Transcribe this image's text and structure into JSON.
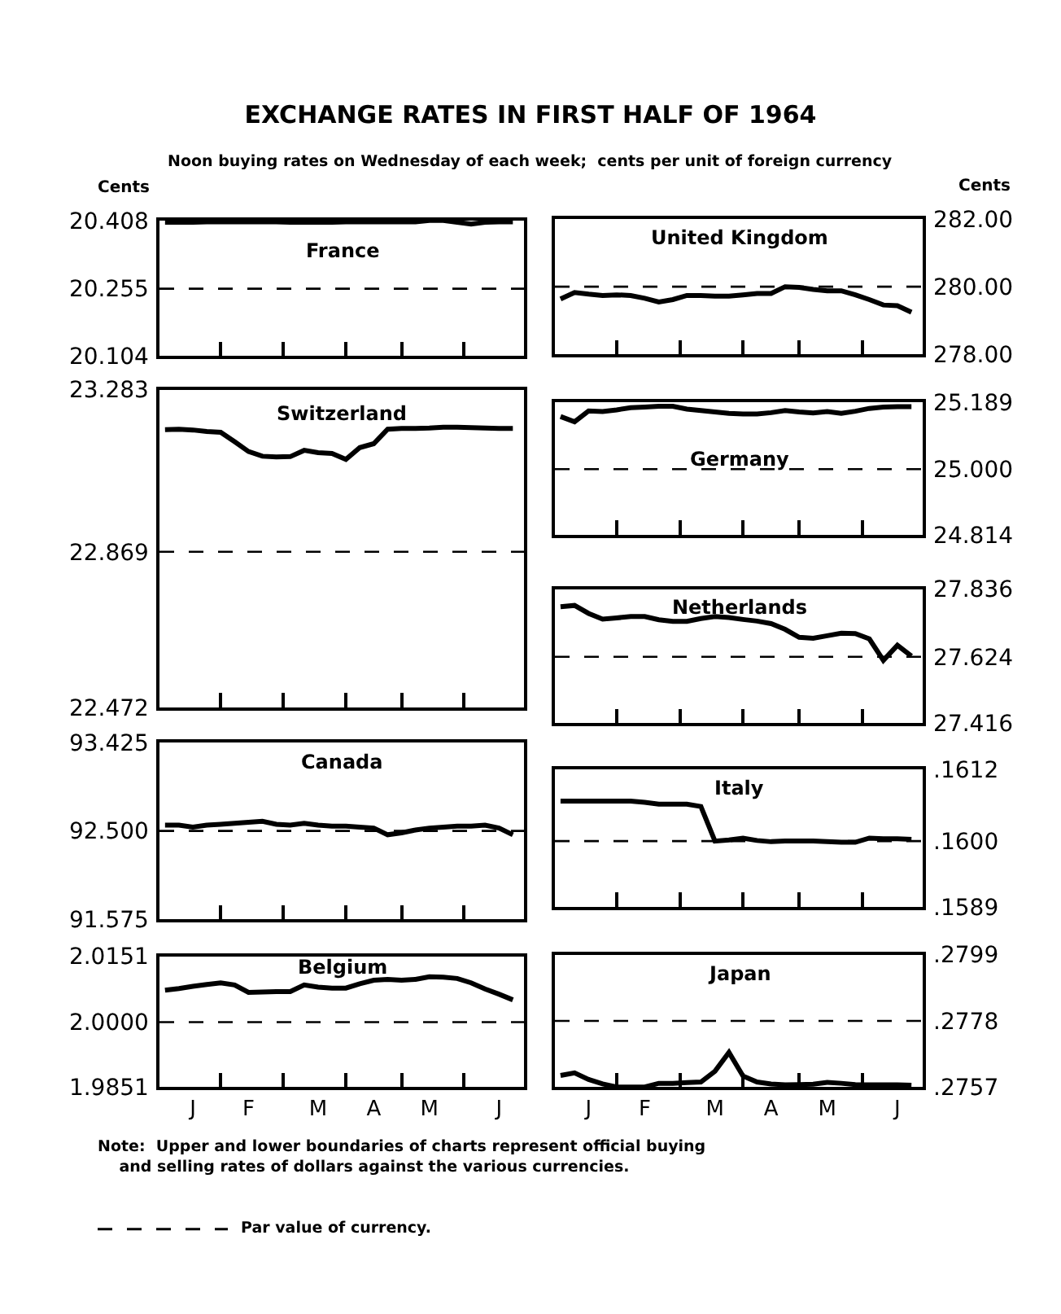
{
  "chart_data": [
    {
      "type": "other",
      "title": "EXCHANGE RATES IN FIRST HALF OF 1964",
      "subtitle": "Noon buying rates on Wednesday of each week;  cents per unit of foreign currency",
      "annotations": [
        "Note:  Upper and lower boundaries of charts represent official buying\n    and selling rates of dollars against the various currencies.",
        "Par value of currency."
      ]
    },
    {
      "type": "line",
      "title": "France",
      "ylabel": "Cents",
      "categories": [
        null,
        null,
        null,
        null,
        null,
        null,
        null,
        null,
        null,
        null,
        null,
        null,
        null,
        null,
        null,
        null,
        null,
        null,
        null,
        null,
        null,
        null,
        null,
        null,
        null,
        null
      ],
      "tick_labels": "y",
      "ylim": [
        20.104,
        20.408
      ],
      "yticks": [
        20.104,
        20.255,
        20.408
      ],
      "ref_lines": [
        {
          "axis": "y",
          "value": 20.255,
          "line_style": "dashed",
          "color": "#000000"
        }
      ],
      "series": [
        {
          "color": "#000000",
          "values": [
            20.404,
            20.404,
            20.404,
            20.405,
            20.405,
            20.405,
            20.405,
            20.405,
            20.405,
            20.404,
            20.404,
            20.404,
            20.404,
            20.405,
            20.405,
            20.405,
            20.405,
            20.405,
            20.405,
            20.408,
            20.408,
            20.404,
            20.4,
            20.404,
            20.405,
            20.405
          ]
        }
      ]
    },
    {
      "type": "line",
      "title": "United Kingdom",
      "ylabel": "Cents",
      "categories": [
        null,
        null,
        null,
        null,
        null,
        null,
        null,
        null,
        null,
        null,
        null,
        null,
        null,
        null,
        null,
        null,
        null,
        null,
        null,
        null,
        null,
        null,
        null,
        null,
        null,
        null
      ],
      "tick_labels": "y",
      "ylim": [
        278,
        282
      ],
      "yticks": [
        {
          "value": 278,
          "label": "278.00"
        },
        {
          "value": 280,
          "label": "280.00"
        },
        {
          "value": 282,
          "label": "282.00"
        }
      ],
      "ref_lines": [
        {
          "axis": "y",
          "value": 280,
          "line_style": "dashed",
          "color": "#000000"
        }
      ],
      "series": [
        {
          "color": "#000000",
          "values": [
            279.64,
            279.83,
            279.78,
            279.74,
            279.76,
            279.74,
            279.66,
            279.55,
            279.62,
            279.74,
            279.74,
            279.72,
            279.72,
            279.76,
            279.8,
            279.8,
            280.0,
            279.98,
            279.92,
            279.88,
            279.88,
            279.76,
            279.62,
            279.46,
            279.44,
            279.25
          ]
        }
      ]
    },
    {
      "type": "line",
      "title": "Switzerland",
      "categories": [
        null,
        null,
        null,
        null,
        null,
        null,
        null,
        null,
        null,
        null,
        null,
        null,
        null,
        null,
        null,
        null,
        null,
        null,
        null,
        null,
        null,
        null,
        null,
        null,
        null,
        null
      ],
      "tick_labels": "y",
      "ylim": [
        22.472,
        23.283
      ],
      "yticks": [
        22.472,
        22.869,
        23.283
      ],
      "ref_lines": [
        {
          "axis": "y",
          "value": 22.869,
          "line_style": "dashed",
          "color": "#000000"
        }
      ],
      "series": [
        {
          "color": "#000000",
          "values": [
            23.181,
            23.182,
            23.18,
            23.176,
            23.174,
            23.15,
            23.125,
            23.113,
            23.111,
            23.112,
            23.128,
            23.122,
            23.12,
            23.105,
            23.135,
            23.145,
            23.182,
            23.184,
            23.184,
            23.185,
            23.187,
            23.187,
            23.186,
            23.185,
            23.184,
            23.184
          ]
        }
      ]
    },
    {
      "type": "line",
      "title": "Germany",
      "categories": [
        null,
        null,
        null,
        null,
        null,
        null,
        null,
        null,
        null,
        null,
        null,
        null,
        null,
        null,
        null,
        null,
        null,
        null,
        null,
        null,
        null,
        null,
        null,
        null,
        null,
        null
      ],
      "tick_labels": "y",
      "ylim": [
        24.814,
        25.189
      ],
      "yticks": [
        24.814,
        {
          "value": 25.0,
          "label": "25.000"
        },
        25.189
      ],
      "ref_lines": [
        {
          "axis": "y",
          "value": 25.0,
          "line_style": "dashed",
          "color": "#000000"
        }
      ],
      "series": [
        {
          "color": "#000000",
          "values": [
            25.149,
            25.134,
            25.165,
            25.163,
            25.168,
            25.174,
            25.176,
            25.178,
            25.178,
            25.17,
            25.166,
            25.162,
            25.158,
            25.156,
            25.156,
            25.16,
            25.166,
            25.162,
            25.159,
            25.163,
            25.158,
            25.164,
            25.172,
            25.176,
            25.177,
            25.177
          ]
        }
      ]
    },
    {
      "type": "line",
      "title": "Netherlands",
      "categories": [
        null,
        null,
        null,
        null,
        null,
        null,
        null,
        null,
        null,
        null,
        null,
        null,
        null,
        null,
        null,
        null,
        null,
        null,
        null,
        null,
        null,
        null,
        null,
        null,
        null,
        null
      ],
      "tick_labels": "y",
      "ylim": [
        27.416,
        27.836
      ],
      "yticks": [
        27.416,
        27.624,
        27.836
      ],
      "ref_lines": [
        {
          "axis": "y",
          "value": 27.624,
          "line_style": "dashed",
          "color": "#000000"
        }
      ],
      "series": [
        {
          "color": "#000000",
          "values": [
            27.781,
            27.785,
            27.76,
            27.742,
            27.746,
            27.75,
            27.75,
            27.74,
            27.735,
            27.735,
            27.744,
            27.75,
            27.747,
            27.741,
            27.736,
            27.728,
            27.71,
            27.685,
            27.682,
            27.69,
            27.698,
            27.697,
            27.68,
            27.613,
            27.66,
            27.626
          ]
        }
      ]
    },
    {
      "type": "line",
      "title": "Canada",
      "categories": [
        null,
        null,
        null,
        null,
        null,
        null,
        null,
        null,
        null,
        null,
        null,
        null,
        null,
        null,
        null,
        null,
        null,
        null,
        null,
        null,
        null,
        null,
        null,
        null,
        null,
        null
      ],
      "tick_labels": "y",
      "ylim": [
        91.575,
        93.425
      ],
      "yticks": [
        91.575,
        {
          "value": 92.5,
          "label": "92.500"
        },
        93.425
      ],
      "ref_lines": [
        {
          "axis": "y",
          "value": 92.5,
          "line_style": "dashed",
          "color": "#000000"
        }
      ],
      "series": [
        {
          "color": "#000000",
          "values": [
            92.56,
            92.56,
            92.54,
            92.56,
            92.57,
            92.58,
            92.59,
            92.6,
            92.57,
            92.56,
            92.58,
            92.56,
            92.55,
            92.55,
            92.54,
            92.53,
            92.46,
            92.48,
            92.51,
            92.53,
            92.54,
            92.55,
            92.55,
            92.56,
            92.53,
            92.46
          ]
        }
      ]
    },
    {
      "type": "line",
      "title": "Italy",
      "categories": [
        null,
        null,
        null,
        null,
        null,
        null,
        null,
        null,
        null,
        null,
        null,
        null,
        null,
        null,
        null,
        null,
        null,
        null,
        null,
        null,
        null,
        null,
        null,
        null,
        null,
        null
      ],
      "tick_labels": "y",
      "ylim": [
        0.1589,
        0.1612
      ],
      "yticks": [
        {
          "value": 0.1589,
          "label": ".1589"
        },
        {
          "value": 0.16,
          "label": ".1600"
        },
        {
          "value": 0.1612,
          "label": ".1612"
        }
      ],
      "ref_lines": [
        {
          "axis": "y",
          "value": 0.16,
          "line_style": "dashed",
          "color": "#000000"
        }
      ],
      "series": [
        {
          "color": "#000000",
          "values": [
            0.16067,
            0.16067,
            0.16067,
            0.16067,
            0.16067,
            0.16067,
            0.16065,
            0.16062,
            0.16062,
            0.16062,
            0.16058,
            0.16,
            0.16002,
            0.16005,
            0.16001,
            0.15999,
            0.16,
            0.16,
            0.16,
            0.15999,
            0.15998,
            0.15998,
            0.16005,
            0.16004,
            0.16004,
            0.16003
          ]
        }
      ]
    },
    {
      "type": "line",
      "title": "Belgium",
      "categories": [
        null,
        null,
        "J",
        null,
        null,
        null,
        "F",
        null,
        null,
        null,
        null,
        "M",
        null,
        null,
        null,
        "A",
        null,
        null,
        null,
        "M",
        null,
        null,
        null,
        null,
        "J",
        null
      ],
      "ylim": [
        1.9851,
        2.0151
      ],
      "yticks": [
        1.9851,
        {
          "value": 2.0,
          "label": "2.0000"
        },
        2.0151
      ],
      "ref_lines": [
        {
          "axis": "y",
          "value": 2.0,
          "line_style": "dashed",
          "color": "#000000"
        }
      ],
      "series": [
        {
          "color": "#000000",
          "values": [
            2.0073,
            2.0077,
            2.0082,
            2.0086,
            2.009,
            2.0085,
            2.0068,
            2.0069,
            2.007,
            2.007,
            2.0085,
            2.008,
            2.0078,
            2.0078,
            2.0088,
            2.0096,
            2.0098,
            2.0096,
            2.0098,
            2.0104,
            2.0103,
            2.01,
            2.009,
            2.0076,
            2.0064,
            2.0051
          ]
        }
      ]
    },
    {
      "type": "line",
      "title": "Japan",
      "categories": [
        null,
        null,
        "J",
        null,
        null,
        null,
        "F",
        null,
        null,
        null,
        null,
        "M",
        null,
        null,
        null,
        "A",
        null,
        null,
        null,
        "M",
        null,
        null,
        null,
        null,
        "J",
        null
      ],
      "ylim": [
        0.2757,
        0.2799
      ],
      "yticks": [
        {
          "value": 0.2757,
          "label": ".2757"
        },
        {
          "value": 0.2778,
          "label": ".2778"
        },
        {
          "value": 0.2799,
          "label": ".2799"
        }
      ],
      "ref_lines": [
        {
          "axis": "y",
          "value": 0.2778,
          "line_style": "dashed",
          "color": "#000000"
        }
      ],
      "series": [
        {
          "color": "#000000",
          "values": [
            0.27607,
            0.27615,
            0.27594,
            0.2758,
            0.2757,
            0.2757,
            0.2757,
            0.27582,
            0.27582,
            0.27584,
            0.27586,
            0.2762,
            0.2768,
            0.27605,
            0.27586,
            0.2758,
            0.27577,
            0.27578,
            0.27579,
            0.27585,
            0.27582,
            0.27578,
            0.27577,
            0.27577,
            0.27577,
            0.27576
          ]
        }
      ]
    }
  ]
}
